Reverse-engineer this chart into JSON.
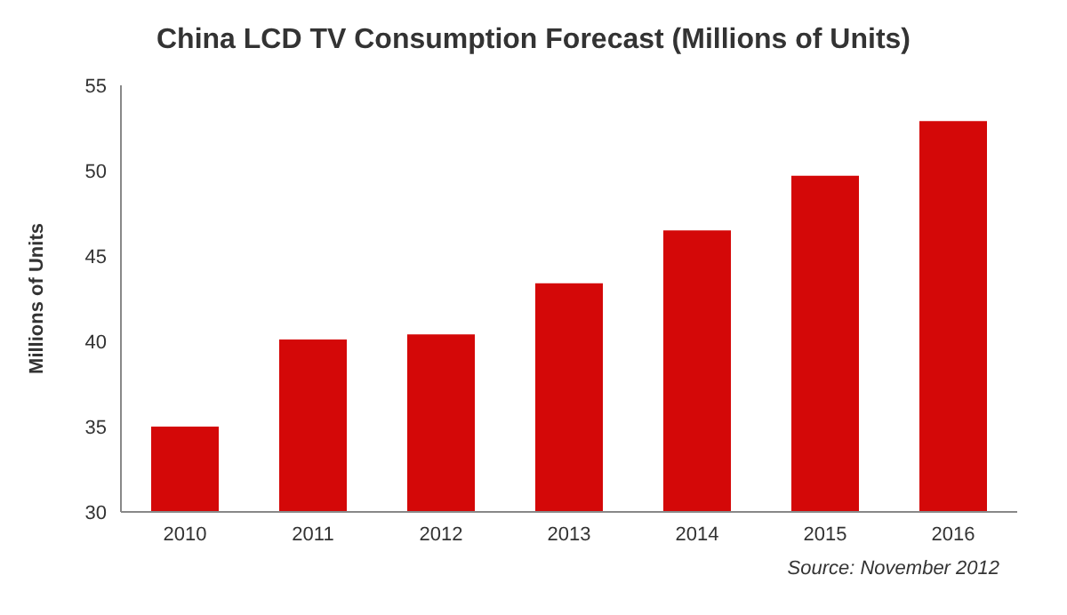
{
  "chart_data": {
    "type": "bar",
    "title": "China LCD TV Consumption Forecast (Millions of Units)",
    "ylabel": "Millions of Units",
    "categories": [
      "2010",
      "2011",
      "2012",
      "2013",
      "2014",
      "2015",
      "2016"
    ],
    "values": [
      35.0,
      40.1,
      40.4,
      43.4,
      46.5,
      49.7,
      52.9
    ],
    "color": "#d40808",
    "ylim": [
      30,
      55
    ],
    "yticks": [
      30,
      35,
      40,
      45,
      50,
      55
    ],
    "grid": false,
    "annotations": [
      "Source: November 2012"
    ]
  }
}
